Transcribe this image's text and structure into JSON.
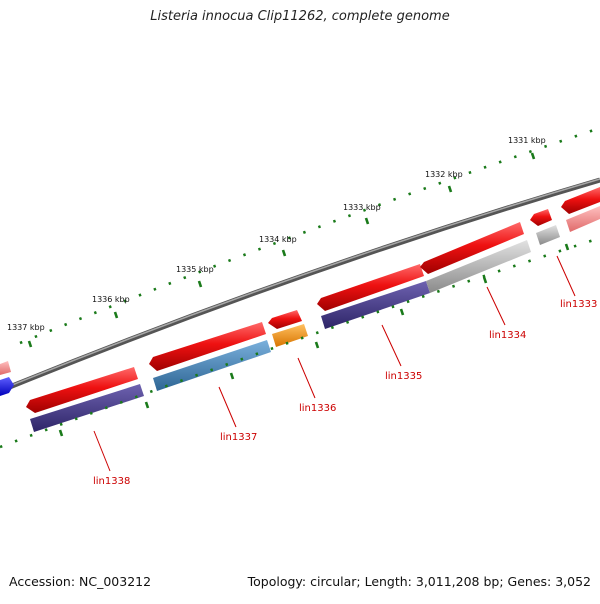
{
  "title": "Listeria innocua Clip11262, complete genome",
  "footer": {
    "accession": "Accession: NC_003212",
    "summary": "Topology: circular; Length: 3,011,208 bp; Genes: 3,052"
  },
  "colors": {
    "backbone": "#777777",
    "gene_red": "#ee1111",
    "gene_pink": "#f08a8a",
    "gene_purple": "#4a3f8a",
    "gene_steel": "#4a86b8",
    "gene_orange": "#ff9a10",
    "gene_gray": "#b8b8b8",
    "gene_blue": "#1a1aff",
    "tick_green": "#1a7a1a",
    "label_red": "#cc0000"
  },
  "kbp_labels": [
    "1331 kbp",
    "1332 kbp",
    "1333 kbp",
    "1334 kbp",
    "1335 kbp",
    "1336 kbp",
    "1337 kbp"
  ],
  "gene_labels": [
    "lin1333",
    "lin1334",
    "lin1335",
    "lin1336",
    "lin1337",
    "lin1338"
  ]
}
